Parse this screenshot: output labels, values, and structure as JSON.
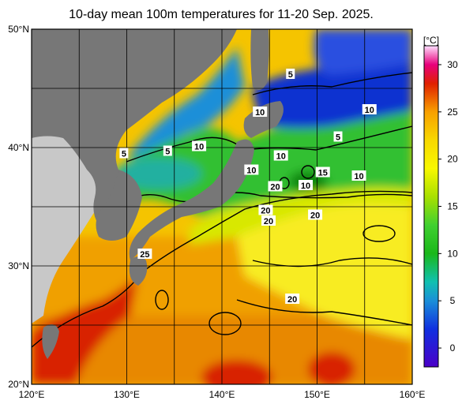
{
  "title": "10-day mean 100m temperatures for 11-20 Sep. 2025.",
  "unit": "[°C]",
  "lat_labels": [
    {
      "text": "50°N",
      "lat": 50
    },
    {
      "text": "40°N",
      "lat": 40
    },
    {
      "text": "30°N",
      "lat": 30
    },
    {
      "text": "20°N",
      "lat": 20
    }
  ],
  "lon_labels": [
    {
      "text": "120°E",
      "lon": 120
    },
    {
      "text": "130°E",
      "lon": 130
    },
    {
      "text": "140°E",
      "lon": 140
    },
    {
      "text": "150°E",
      "lon": 150
    },
    {
      "text": "160°E",
      "lon": 160
    }
  ],
  "colorbar": {
    "min": -2,
    "max": 32,
    "ticks": [
      {
        "text": "0",
        "value": 0
      },
      {
        "text": "5",
        "value": 5
      },
      {
        "text": "10",
        "value": 10
      },
      {
        "text": "15",
        "value": 15
      },
      {
        "text": "20",
        "value": 20
      },
      {
        "text": "25",
        "value": 25
      },
      {
        "text": "30",
        "value": 30
      }
    ],
    "stops": [
      {
        "value": -2,
        "color": "#4b00c8"
      },
      {
        "value": 2,
        "color": "#1030e0"
      },
      {
        "value": 5,
        "color": "#1a8fd8"
      },
      {
        "value": 7,
        "color": "#10c0b0"
      },
      {
        "value": 10,
        "color": "#1ab81a"
      },
      {
        "value": 13,
        "color": "#40d030"
      },
      {
        "value": 16,
        "color": "#a8e000"
      },
      {
        "value": 19,
        "color": "#f8f800"
      },
      {
        "value": 22,
        "color": "#f8d800"
      },
      {
        "value": 25,
        "color": "#f8a000"
      },
      {
        "value": 28,
        "color": "#e02000"
      },
      {
        "value": 30,
        "color": "#e8007c"
      },
      {
        "value": 32,
        "color": "#ffe0ff"
      }
    ]
  },
  "contour_labels": [
    {
      "text": "5",
      "lon": 147.2,
      "lat": 46.2
    },
    {
      "text": "10",
      "lon": 155.5,
      "lat": 43.2
    },
    {
      "text": "10",
      "lon": 144.0,
      "lat": 43.0
    },
    {
      "text": "5",
      "lon": 152.2,
      "lat": 40.9
    },
    {
      "text": "5",
      "lon": 129.7,
      "lat": 39.5
    },
    {
      "text": "5",
      "lon": 134.3,
      "lat": 39.7
    },
    {
      "text": "10",
      "lon": 137.6,
      "lat": 40.1
    },
    {
      "text": "10",
      "lon": 146.2,
      "lat": 39.3
    },
    {
      "text": "10",
      "lon": 143.1,
      "lat": 38.1
    },
    {
      "text": "15",
      "lon": 150.6,
      "lat": 37.9
    },
    {
      "text": "10",
      "lon": 154.4,
      "lat": 37.6
    },
    {
      "text": "20",
      "lon": 145.6,
      "lat": 36.7
    },
    {
      "text": "10",
      "lon": 148.8,
      "lat": 36.8
    },
    {
      "text": "20",
      "lon": 144.6,
      "lat": 34.7
    },
    {
      "text": "20",
      "lon": 144.9,
      "lat": 33.8
    },
    {
      "text": "20",
      "lon": 149.8,
      "lat": 34.3
    },
    {
      "text": "25",
      "lon": 131.9,
      "lat": 31.0
    },
    {
      "text": "20",
      "lon": 147.4,
      "lat": 27.2
    }
  ],
  "colors": {
    "land": "#777777",
    "land_far": "#c8c8c8",
    "grid": "#000000"
  }
}
